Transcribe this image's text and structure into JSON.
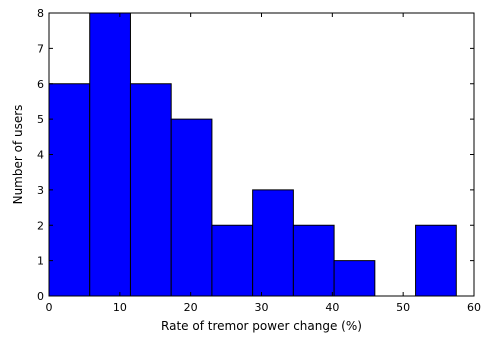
{
  "chart_data": {
    "type": "bar",
    "bins": [
      {
        "x0": 0,
        "x1": 5.75,
        "value": 6
      },
      {
        "x0": 5.75,
        "x1": 11.5,
        "value": 8
      },
      {
        "x0": 11.5,
        "x1": 17.25,
        "value": 6
      },
      {
        "x0": 17.25,
        "x1": 23,
        "value": 5
      },
      {
        "x0": 23,
        "x1": 28.75,
        "value": 2
      },
      {
        "x0": 28.75,
        "x1": 34.5,
        "value": 3
      },
      {
        "x0": 34.5,
        "x1": 40.25,
        "value": 2
      },
      {
        "x0": 40.25,
        "x1": 46,
        "value": 1
      },
      {
        "x0": 46,
        "x1": 51.75,
        "value": 0
      },
      {
        "x0": 51.75,
        "x1": 57.5,
        "value": 2
      }
    ],
    "title": "",
    "xlabel": "Rate of tremor power change (%)",
    "ylabel": "Number of users",
    "xlim": [
      0,
      60
    ],
    "ylim": [
      0,
      8
    ],
    "xticks": [
      "0",
      "10",
      "20",
      "30",
      "40",
      "50",
      "60"
    ],
    "yticks": [
      "0",
      "1",
      "2",
      "3",
      "4",
      "5",
      "6",
      "7",
      "8"
    ],
    "grid": false,
    "colors": {
      "bar": "#0000ff",
      "edge": "#000000"
    }
  }
}
